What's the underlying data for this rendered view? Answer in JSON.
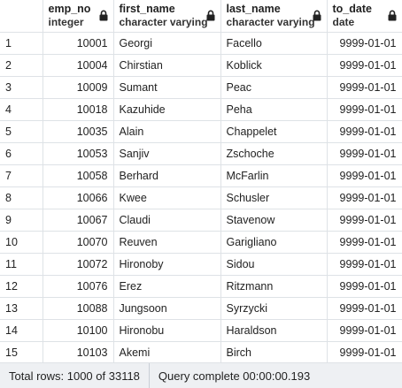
{
  "columns": [
    {
      "name": "emp_no",
      "type": "integer"
    },
    {
      "name": "first_name",
      "type": "character varying"
    },
    {
      "name": "last_name",
      "type": "character varying"
    },
    {
      "name": "to_date",
      "type": "date"
    }
  ],
  "rows": [
    {
      "idx": "1",
      "emp_no": "10001",
      "first_name": "Georgi",
      "last_name": "Facello",
      "to_date": "9999-01-01"
    },
    {
      "idx": "2",
      "emp_no": "10004",
      "first_name": "Chirstian",
      "last_name": "Koblick",
      "to_date": "9999-01-01"
    },
    {
      "idx": "3",
      "emp_no": "10009",
      "first_name": "Sumant",
      "last_name": "Peac",
      "to_date": "9999-01-01"
    },
    {
      "idx": "4",
      "emp_no": "10018",
      "first_name": "Kazuhide",
      "last_name": "Peha",
      "to_date": "9999-01-01"
    },
    {
      "idx": "5",
      "emp_no": "10035",
      "first_name": "Alain",
      "last_name": "Chappelet",
      "to_date": "9999-01-01"
    },
    {
      "idx": "6",
      "emp_no": "10053",
      "first_name": "Sanjiv",
      "last_name": "Zschoche",
      "to_date": "9999-01-01"
    },
    {
      "idx": "7",
      "emp_no": "10058",
      "first_name": "Berhard",
      "last_name": "McFarlin",
      "to_date": "9999-01-01"
    },
    {
      "idx": "8",
      "emp_no": "10066",
      "first_name": "Kwee",
      "last_name": "Schusler",
      "to_date": "9999-01-01"
    },
    {
      "idx": "9",
      "emp_no": "10067",
      "first_name": "Claudi",
      "last_name": "Stavenow",
      "to_date": "9999-01-01"
    },
    {
      "idx": "10",
      "emp_no": "10070",
      "first_name": "Reuven",
      "last_name": "Garigliano",
      "to_date": "9999-01-01"
    },
    {
      "idx": "11",
      "emp_no": "10072",
      "first_name": "Hironoby",
      "last_name": "Sidou",
      "to_date": "9999-01-01"
    },
    {
      "idx": "12",
      "emp_no": "10076",
      "first_name": "Erez",
      "last_name": "Ritzmann",
      "to_date": "9999-01-01"
    },
    {
      "idx": "13",
      "emp_no": "10088",
      "first_name": "Jungsoon",
      "last_name": "Syrzycki",
      "to_date": "9999-01-01"
    },
    {
      "idx": "14",
      "emp_no": "10100",
      "first_name": "Hironobu",
      "last_name": "Haraldson",
      "to_date": "9999-01-01"
    },
    {
      "idx": "15",
      "emp_no": "10103",
      "first_name": "Akemi",
      "last_name": "Birch",
      "to_date": "9999-01-01"
    }
  ],
  "status": {
    "total_rows": "Total rows: 1000 of 33118",
    "query": "Query complete 00:00:00.193"
  },
  "icons": {
    "column_lock": "lock-icon"
  },
  "colors": {
    "grid_line": "#dee2e6",
    "statusbar_bg": "#eef0f3"
  }
}
